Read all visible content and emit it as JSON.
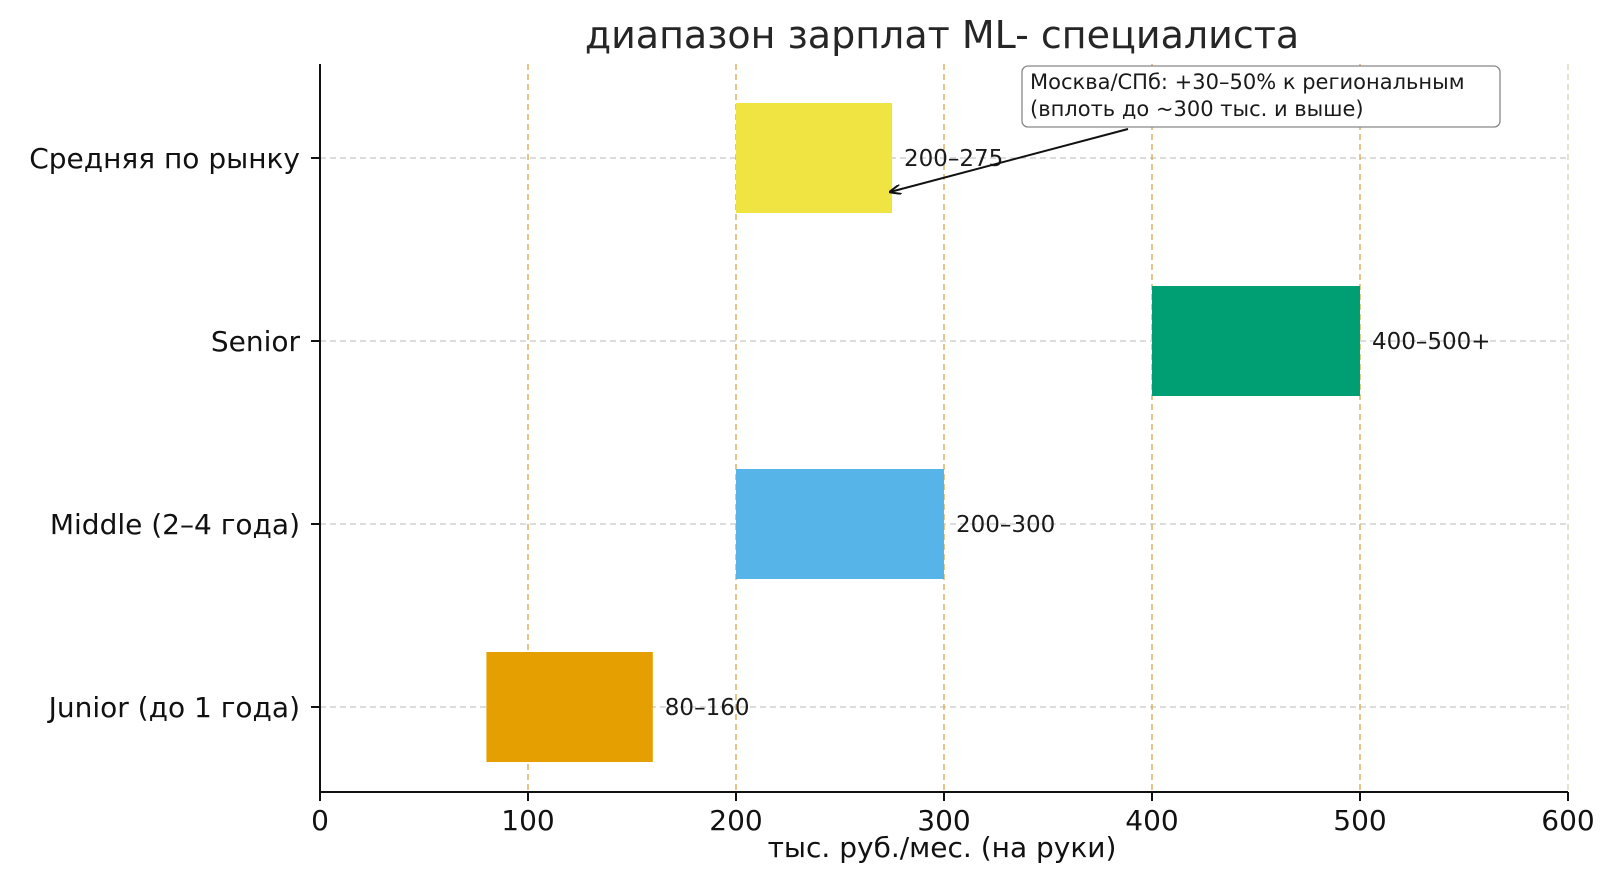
{
  "chart_data": {
    "type": "bar",
    "orientation": "horizontal-range",
    "title": "диапазон зарплат ML- специалиста",
    "xlabel": "тыс. руб./мес. (на руки)",
    "ylabel": "",
    "xlim": [
      0,
      600
    ],
    "xticks": [
      "0",
      "100",
      "200",
      "300",
      "400",
      "500",
      "600"
    ],
    "grid": true,
    "categories": [
      "Junior (до 1 года)",
      "Middle (2–4 года)",
      "Senior",
      "Средняя по рынку"
    ],
    "ranges": [
      {
        "start": 80,
        "end": 160,
        "label": "80–160",
        "color": "#E69F00"
      },
      {
        "start": 200,
        "end": 300,
        "label": "200–300",
        "color": "#56B4E9"
      },
      {
        "start": 400,
        "end": 500,
        "label": "400–500+",
        "color": "#009E73"
      },
      {
        "start": 200,
        "end": 275,
        "label": "200–275",
        "color": "#F0E442"
      }
    ],
    "annotation": {
      "lines": [
        "Москва/СПб: +30–50% к региональным",
        "(вплоть до ~300 тыс. и выше)"
      ],
      "arrow_to": {
        "x": 275,
        "category": "Средняя по рынку"
      }
    }
  }
}
